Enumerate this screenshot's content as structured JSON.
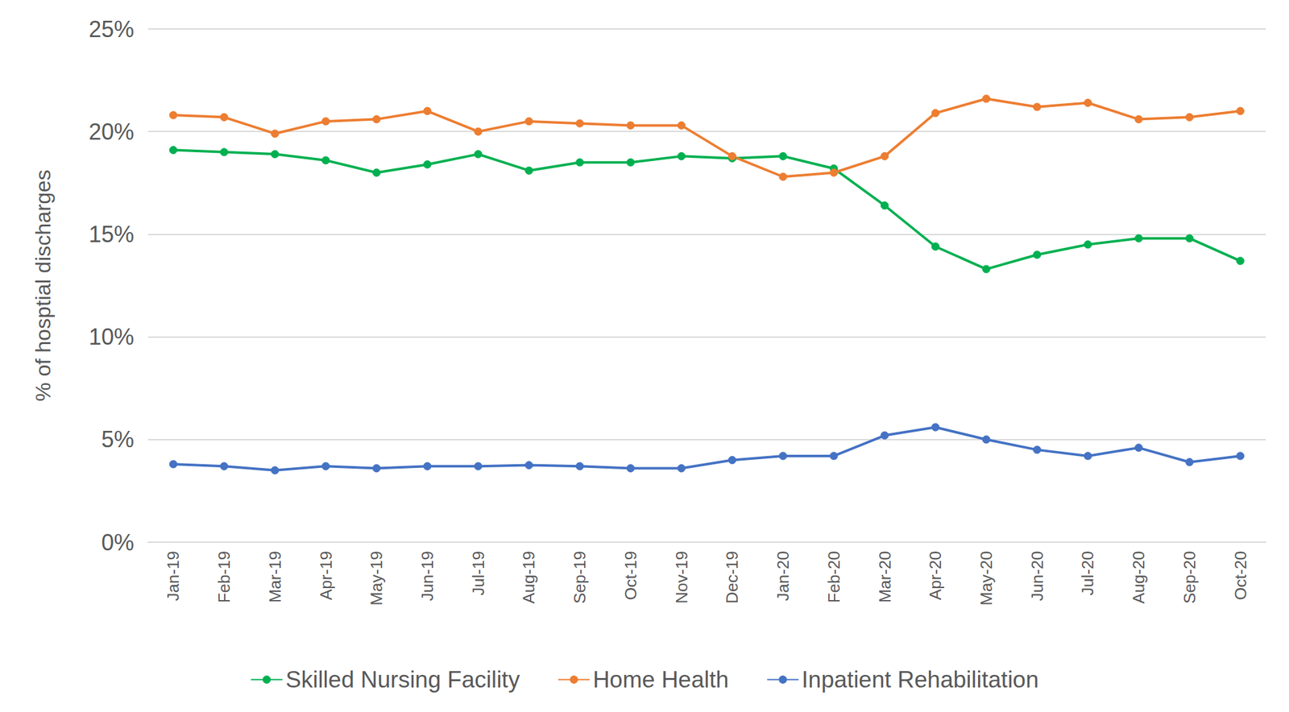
{
  "chart_data": {
    "type": "line",
    "y_label": "% of hosptial discharges",
    "categories": [
      "Jan-19",
      "Feb-19",
      "Mar-19",
      "Apr-19",
      "May-19",
      "Jun-19",
      "Jul-19",
      "Aug-19",
      "Sep-19",
      "Oct-19",
      "Nov-19",
      "Dec-19",
      "Jan-20",
      "Feb-20",
      "Mar-20",
      "Apr-20",
      "May-20",
      "Jun-20",
      "Jul-20",
      "Aug-20",
      "Sep-20",
      "Oct-20"
    ],
    "series": [
      {
        "name": "Skilled Nursing Facility",
        "color": "#00b050",
        "values": [
          19.1,
          19.0,
          18.9,
          18.6,
          18.0,
          18.4,
          18.9,
          18.1,
          18.5,
          18.5,
          18.8,
          18.7,
          18.8,
          18.2,
          16.4,
          14.4,
          13.3,
          14.0,
          14.5,
          14.8,
          14.8,
          13.7
        ]
      },
      {
        "name": "Home Health",
        "color": "#ed7d31",
        "values": [
          20.8,
          20.7,
          19.9,
          20.5,
          20.6,
          21.0,
          20.0,
          20.5,
          20.4,
          20.3,
          20.3,
          18.8,
          17.8,
          18.0,
          18.8,
          20.9,
          21.6,
          21.2,
          21.4,
          20.6,
          20.7,
          21.0
        ]
      },
      {
        "name": "Inpatient Rehabilitation",
        "color": "#4472c4",
        "values": [
          3.8,
          3.7,
          3.5,
          3.7,
          3.6,
          3.7,
          3.7,
          3.75,
          3.7,
          3.6,
          3.6,
          4.0,
          4.2,
          4.2,
          5.2,
          5.6,
          5.0,
          4.5,
          4.2,
          4.6,
          3.9,
          4.2
        ]
      }
    ],
    "ylim": [
      0,
      25
    ],
    "yticks": [
      {
        "value": 0,
        "label": "0%"
      },
      {
        "value": 5,
        "label": "5%"
      },
      {
        "value": 10,
        "label": "10%"
      },
      {
        "value": 15,
        "label": "15%"
      },
      {
        "value": 20,
        "label": "20%"
      },
      {
        "value": 25,
        "label": "25%"
      }
    ],
    "grid": true,
    "legend": "bottom",
    "marker": "circle"
  }
}
